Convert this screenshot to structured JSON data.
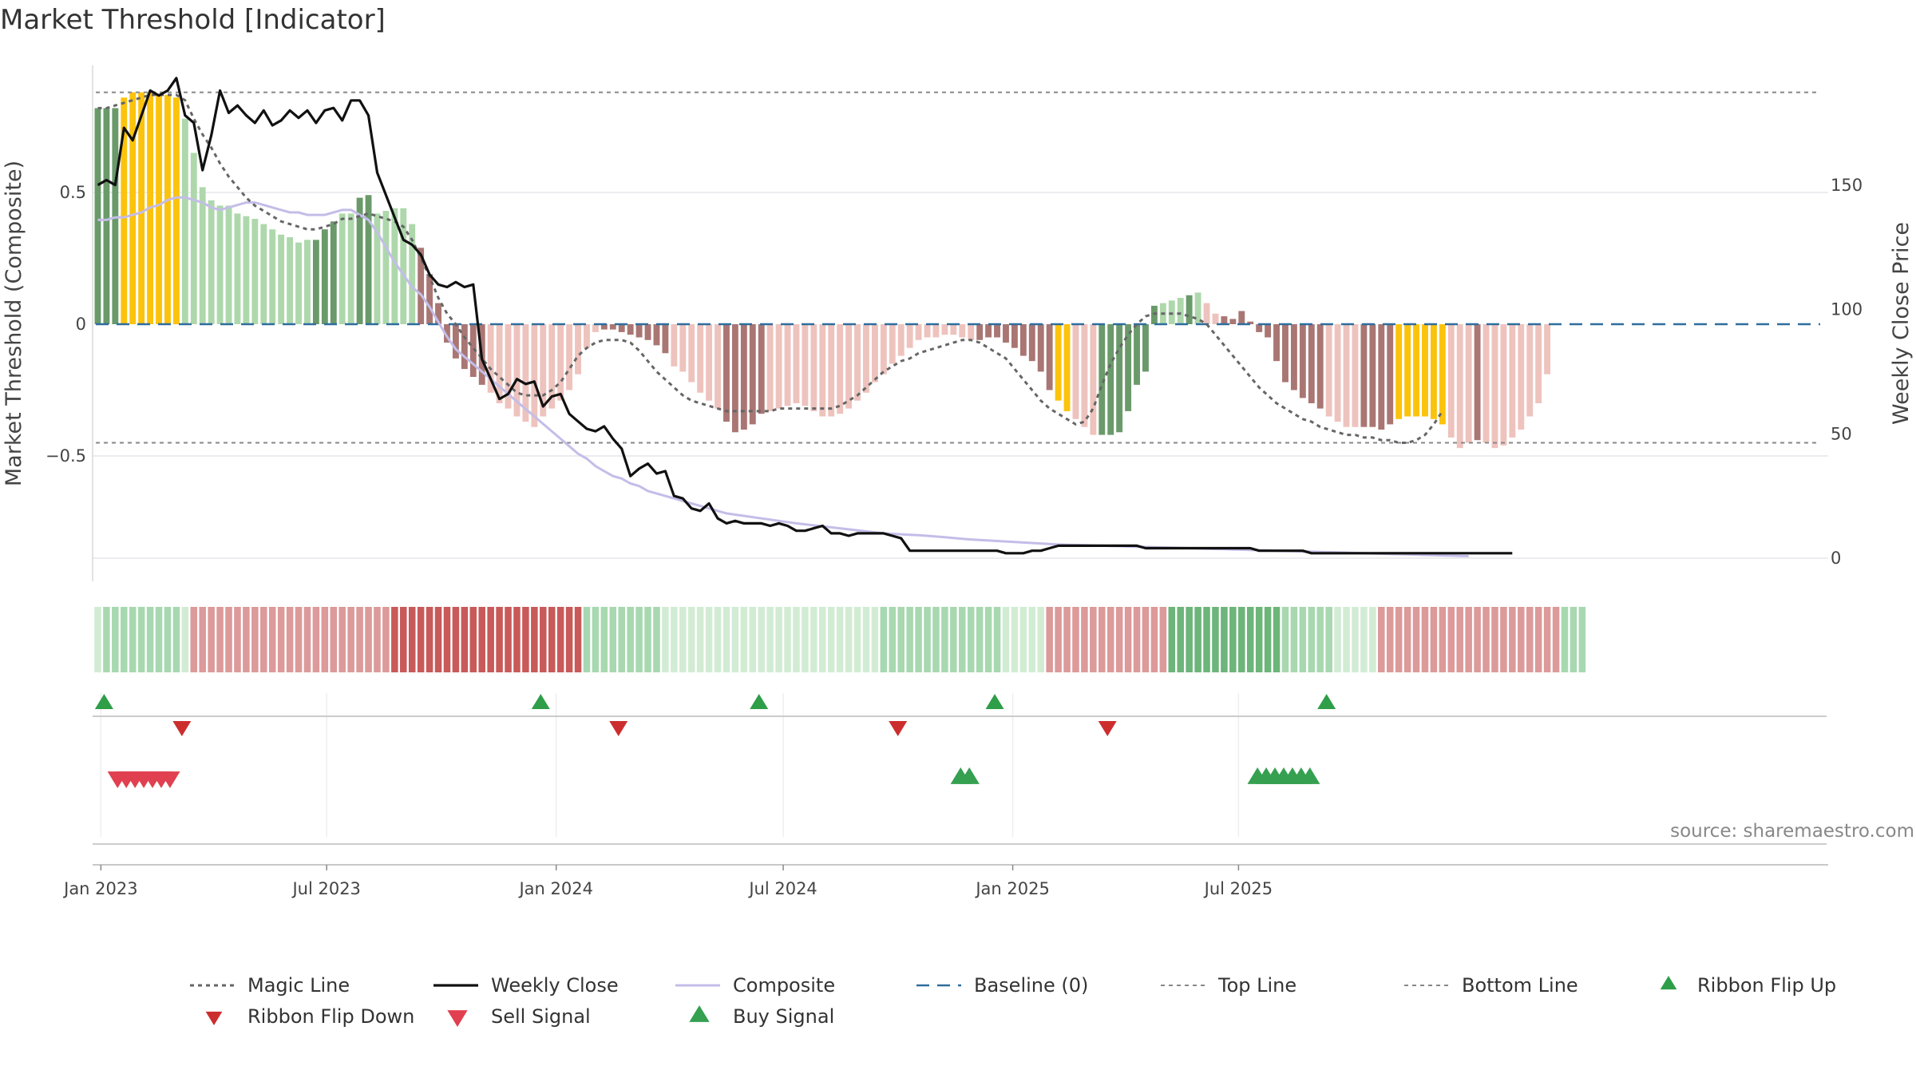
{
  "title": "Market Threshold [Indicator]",
  "source": "source: sharemaestro.com",
  "colors": {
    "strong_bull": "#6a9a6a",
    "bull": "#aed8ac",
    "extreme": "#fcc30d",
    "bear": "#a97673",
    "weak_bear": "#eec3bd",
    "magic_line": "#666666",
    "weekly_close": "#111111",
    "composite": "#c4bde8",
    "baseline": "#2e6d9e",
    "top_bottom_line": "#888888",
    "flip_up": "#2e9e48",
    "flip_down": "#cc2e2e",
    "sell": "#e04050",
    "buy": "#34a050",
    "ribbon_green_strong": "#6db57a",
    "ribbon_green": "#a8d8b0",
    "ribbon_green_light": "#d2ecd4",
    "ribbon_red_strong": "#c85a5a",
    "ribbon_red": "#dc9a9a",
    "ribbon_red_light": "#f2d2d2"
  },
  "chart_data": {
    "type": "bar",
    "title": "Market Threshold [Indicator]",
    "x_ticks": [
      "Jan 2023",
      "Jul 2023",
      "Jan 2024",
      "Jul 2024",
      "Jan 2025",
      "Jul 2025"
    ],
    "left_axis": {
      "label": "Market Threshold (Composite)",
      "ticks": [
        "0.5",
        "0",
        "−0.5"
      ],
      "ylim": [
        -0.9,
        0.98
      ]
    },
    "right_axis": {
      "label": "Weekly Close Price",
      "ticks": [
        "150",
        "100",
        "50",
        "0"
      ],
      "ylim": [
        0,
        195
      ]
    },
    "x_start": "2022-12-26",
    "top_line": 0.88,
    "bottom_line": -0.45,
    "bar_style": [
      "B",
      "A",
      "A",
      "Y",
      "Y",
      "Y",
      "Y",
      "Y",
      "Y",
      "Y",
      "S",
      "S",
      "S",
      "S",
      "S",
      "S",
      "S",
      "S",
      "S",
      "S",
      "S",
      "S",
      "S",
      "S",
      "S",
      "A",
      "A",
      "A",
      "S",
      "S",
      "A",
      "A",
      "S",
      "S",
      "S",
      "S",
      "S",
      "r",
      "r",
      "r",
      "r",
      "r",
      "r",
      "r",
      "r",
      "w",
      "w",
      "w",
      "w",
      "w",
      "w",
      "w",
      "w",
      "w",
      "w",
      "w",
      "w",
      "w",
      "r",
      "r",
      "r",
      "r",
      "r",
      "r",
      "r",
      "r",
      "w",
      "w",
      "w",
      "w",
      "w",
      "w",
      "r",
      "r",
      "r",
      "r",
      "r",
      "w",
      "w",
      "w",
      "w",
      "w",
      "w",
      "w",
      "w",
      "w",
      "w",
      "w",
      "w",
      "w",
      "w",
      "w",
      "w",
      "w",
      "w",
      "w",
      "w",
      "w",
      "w",
      "w",
      "w",
      "r",
      "r",
      "r",
      "r",
      "r",
      "r",
      "r",
      "r",
      "r",
      "Y",
      "Y",
      "w",
      "w",
      "w",
      "A",
      "A",
      "A",
      "A",
      "A",
      "A",
      "A",
      "S",
      "S",
      "S",
      "A",
      "S",
      "w",
      "w",
      "r",
      "r",
      "r",
      "r",
      "r",
      "r",
      "r",
      "r",
      "r",
      "r",
      "r",
      "r",
      "w",
      "w",
      "w",
      "w",
      "r",
      "r",
      "r",
      "r",
      "Y",
      "Y",
      "Y",
      "Y",
      "Y",
      "Y",
      "w",
      "w",
      "w",
      "r",
      "w"
    ],
    "composite_bars": [
      0.82,
      0.82,
      0.82,
      0.86,
      0.88,
      0.88,
      0.88,
      0.87,
      0.87,
      0.86,
      0.78,
      0.65,
      0.52,
      0.47,
      0.45,
      0.45,
      0.42,
      0.41,
      0.4,
      0.38,
      0.36,
      0.34,
      0.33,
      0.31,
      0.32,
      0.32,
      0.36,
      0.39,
      0.42,
      0.42,
      0.48,
      0.49,
      0.42,
      0.43,
      0.44,
      0.44,
      0.38,
      0.29,
      0.19,
      0.08,
      -0.07,
      -0.13,
      -0.17,
      -0.2,
      -0.23,
      -0.26,
      -0.3,
      -0.32,
      -0.35,
      -0.37,
      -0.39,
      -0.35,
      -0.32,
      -0.29,
      -0.25,
      -0.19,
      -0.09,
      -0.03,
      -0.02,
      -0.02,
      -0.03,
      -0.04,
      -0.05,
      -0.06,
      -0.08,
      -0.11,
      -0.16,
      -0.18,
      -0.22,
      -0.26,
      -0.29,
      -0.32,
      -0.37,
      -0.41,
      -0.4,
      -0.38,
      -0.34,
      -0.33,
      -0.32,
      -0.31,
      -0.3,
      -0.31,
      -0.33,
      -0.35,
      -0.35,
      -0.34,
      -0.32,
      -0.29,
      -0.26,
      -0.22,
      -0.19,
      -0.15,
      -0.12,
      -0.09,
      -0.06,
      -0.05,
      -0.05,
      -0.04,
      -0.04,
      -0.05,
      -0.06,
      -0.06,
      -0.05,
      -0.05,
      -0.07,
      -0.09,
      -0.12,
      -0.14,
      -0.18,
      -0.25,
      -0.29,
      -0.33,
      -0.36,
      -0.39,
      -0.42,
      -0.42,
      -0.42,
      -0.41,
      -0.33,
      -0.23,
      -0.18,
      0.07,
      0.08,
      0.09,
      0.1,
      0.11,
      0.12,
      0.08,
      0.04,
      0.03,
      0.02,
      0.05,
      0.01,
      -0.03,
      -0.05,
      -0.14,
      -0.22,
      -0.25,
      -0.28,
      -0.3,
      -0.32,
      -0.35,
      -0.37,
      -0.39,
      -0.39,
      -0.39,
      -0.39,
      -0.4,
      -0.38,
      -0.36,
      -0.35,
      -0.35,
      -0.35,
      -0.36,
      -0.38,
      -0.43,
      -0.47,
      -0.45,
      -0.44,
      -0.45,
      -0.47,
      -0.46,
      -0.43,
      -0.4,
      -0.35,
      -0.3,
      -0.19
    ],
    "magic_line": [
      0.82,
      0.82,
      0.83,
      0.84,
      0.85,
      0.86,
      0.87,
      0.87,
      0.87,
      0.87,
      0.85,
      0.78,
      0.72,
      0.67,
      0.61,
      0.56,
      0.52,
      0.48,
      0.45,
      0.43,
      0.41,
      0.39,
      0.38,
      0.37,
      0.36,
      0.36,
      0.37,
      0.38,
      0.4,
      0.4,
      0.41,
      0.42,
      0.41,
      0.4,
      0.39,
      0.37,
      0.32,
      0.25,
      0.18,
      0.1,
      0.04,
      0.0,
      -0.05,
      -0.09,
      -0.13,
      -0.17,
      -0.2,
      -0.23,
      -0.26,
      -0.27,
      -0.27,
      -0.27,
      -0.25,
      -0.22,
      -0.17,
      -0.12,
      -0.09,
      -0.07,
      -0.06,
      -0.06,
      -0.06,
      -0.07,
      -0.1,
      -0.14,
      -0.18,
      -0.21,
      -0.24,
      -0.27,
      -0.29,
      -0.3,
      -0.31,
      -0.32,
      -0.33,
      -0.33,
      -0.33,
      -0.33,
      -0.33,
      -0.33,
      -0.32,
      -0.32,
      -0.32,
      -0.32,
      -0.32,
      -0.32,
      -0.32,
      -0.31,
      -0.29,
      -0.27,
      -0.24,
      -0.21,
      -0.18,
      -0.16,
      -0.14,
      -0.13,
      -0.11,
      -0.1,
      -0.09,
      -0.08,
      -0.07,
      -0.06,
      -0.06,
      -0.07,
      -0.09,
      -0.11,
      -0.13,
      -0.17,
      -0.21,
      -0.25,
      -0.29,
      -0.32,
      -0.34,
      -0.36,
      -0.38,
      -0.37,
      -0.32,
      -0.23,
      -0.15,
      -0.09,
      -0.04,
      0.0,
      0.03,
      0.04,
      0.04,
      0.04,
      0.04,
      0.03,
      0.02,
      0.0,
      -0.04,
      -0.08,
      -0.12,
      -0.16,
      -0.2,
      -0.24,
      -0.27,
      -0.3,
      -0.32,
      -0.34,
      -0.36,
      -0.37,
      -0.39,
      -0.4,
      -0.41,
      -0.42,
      -0.42,
      -0.43,
      -0.43,
      -0.44,
      -0.44,
      -0.45,
      -0.45,
      -0.44,
      -0.42,
      -0.38,
      -0.33
    ],
    "composite_line": [
      136,
      136,
      137,
      137,
      138,
      139,
      141,
      142,
      144,
      145,
      145,
      144,
      143,
      141,
      140,
      141,
      142,
      143,
      143,
      142,
      141,
      140,
      139,
      139,
      138,
      138,
      138,
      139,
      140,
      140,
      138,
      136,
      131,
      125,
      119,
      114,
      109,
      106,
      101,
      95,
      89,
      84,
      81,
      78,
      75,
      72,
      69,
      66,
      63,
      60,
      57,
      54,
      51,
      48,
      45,
      42,
      40,
      37,
      35,
      33,
      32,
      30,
      29,
      27,
      26,
      25,
      24,
      23,
      22,
      21,
      20,
      19,
      18,
      17.5,
      17,
      16.5,
      16,
      15.5,
      15,
      14.5,
      14,
      13.6,
      13.2,
      12.8,
      12.4,
      12,
      11.6,
      11.2,
      10.8,
      10.4,
      10,
      9.8,
      9.6,
      9.4,
      9.2,
      9,
      8.7,
      8.4,
      8.1,
      7.8,
      7.5,
      7.3,
      7.1,
      6.9,
      6.7,
      6.5,
      6.3,
      6.1,
      5.9,
      5.7,
      5.5,
      5.4,
      5.3,
      5.2,
      5.1,
      5,
      4.9,
      4.8,
      4.7,
      4.6,
      4.5,
      4.4,
      4.3,
      4.2,
      4.1,
      4,
      3.9,
      3.8,
      3.7,
      3.6,
      3.5,
      3.4,
      3.3,
      3.2,
      3.1,
      3,
      2.9,
      2.8,
      2.7,
      2.6,
      2.5,
      2.4,
      2.3,
      2.2,
      2.1,
      2,
      1.9,
      1.8,
      1.7,
      1.6,
      1.5,
      1.4,
      1.3,
      1.2,
      1.1,
      1,
      0.9,
      0.8
    ],
    "weekly_close": [
      150,
      152,
      150,
      173,
      168,
      178,
      188,
      186,
      188,
      193,
      178,
      175,
      156,
      170,
      188,
      179,
      182,
      178,
      175,
      180,
      174,
      176,
      180,
      177,
      180,
      175,
      180,
      181,
      176,
      184,
      184,
      178,
      155,
      146,
      137,
      128,
      126,
      122,
      114,
      110,
      109,
      111,
      109,
      110,
      80,
      72,
      64,
      66,
      72,
      70,
      71,
      61,
      65,
      66,
      58,
      55,
      52,
      51,
      53,
      48,
      44,
      33,
      36,
      38,
      34,
      35,
      25,
      24,
      20,
      19,
      22,
      16,
      14,
      15,
      14,
      14,
      14,
      13,
      14,
      13,
      11,
      11,
      12,
      13,
      10,
      10,
      9,
      10,
      10,
      10,
      10,
      9,
      8,
      3,
      3,
      3,
      3,
      3,
      3,
      3,
      3,
      3,
      3,
      3,
      2,
      2,
      2,
      3,
      3,
      4,
      5,
      5,
      5,
      5,
      5,
      5,
      5,
      5,
      5,
      5,
      4,
      4,
      4,
      4,
      4,
      4,
      4,
      4,
      4,
      4,
      4,
      4,
      4,
      3,
      3,
      3,
      3,
      3,
      3,
      2,
      2,
      2,
      2,
      2,
      2,
      2,
      2,
      2,
      2,
      2,
      2,
      2,
      2,
      2,
      2,
      2,
      2,
      2,
      2,
      2,
      2,
      2,
      2
    ],
    "ribbon": [
      "L",
      "G",
      "G",
      "G",
      "G",
      "G",
      "G",
      "G",
      "G",
      "G",
      "l",
      "r",
      "r",
      "r",
      "r",
      "r",
      "r",
      "r",
      "r",
      "r",
      "r",
      "r",
      "r",
      "r",
      "r",
      "r",
      "r",
      "r",
      "r",
      "r",
      "r",
      "r",
      "r",
      "r",
      "R",
      "R",
      "R",
      "R",
      "R",
      "R",
      "R",
      "R",
      "R",
      "R",
      "R",
      "R",
      "R",
      "R",
      "R",
      "R",
      "R",
      "R",
      "R",
      "R",
      "R",
      "R",
      "G",
      "G",
      "G",
      "G",
      "G",
      "G",
      "G",
      "G",
      "G",
      "l",
      "l",
      "l",
      "l",
      "l",
      "l",
      "l",
      "l",
      "l",
      "l",
      "l",
      "l",
      "l",
      "l",
      "l",
      "l",
      "l",
      "l",
      "l",
      "l",
      "l",
      "l",
      "l",
      "l",
      "l",
      "G",
      "G",
      "G",
      "G",
      "G",
      "G",
      "G",
      "G",
      "G",
      "G",
      "G",
      "G",
      "G",
      "G",
      "l",
      "l",
      "l",
      "l",
      "l",
      "r",
      "r",
      "r",
      "r",
      "r",
      "r",
      "r",
      "r",
      "r",
      "r",
      "r",
      "r",
      "r",
      "r",
      "S",
      "S",
      "S",
      "S",
      "S",
      "S",
      "S",
      "S",
      "S",
      "S",
      "S",
      "S",
      "S",
      "G",
      "G",
      "G",
      "G",
      "G",
      "G",
      "l",
      "l",
      "l",
      "l",
      "l",
      "r",
      "r",
      "r",
      "r",
      "r",
      "r",
      "r",
      "r",
      "r",
      "r",
      "r",
      "r",
      "r",
      "r",
      "r",
      "r",
      "r",
      "r",
      "r",
      "r",
      "r",
      "G",
      "G",
      "G"
    ],
    "ribbon_flip_up_weeks": [
      1,
      51,
      76,
      103,
      141
    ],
    "ribbon_flip_down_weeks": [
      10,
      60,
      92,
      116
    ],
    "sell_signal_weeks": [
      3,
      4,
      5,
      6,
      7,
      8,
      9
    ],
    "buy_signal_weeks": [
      99,
      100,
      133,
      134,
      135,
      136,
      137,
      138,
      139
    ],
    "legend": [
      {
        "key": "magic",
        "label": "Magic Line"
      },
      {
        "key": "close",
        "label": "Weekly Close"
      },
      {
        "key": "composite",
        "label": "Composite"
      },
      {
        "key": "baseline",
        "label": "Baseline (0)"
      },
      {
        "key": "top",
        "label": "Top Line"
      },
      {
        "key": "bottom",
        "label": "Bottom Line"
      },
      {
        "key": "flipup",
        "label": "Ribbon Flip Up"
      },
      {
        "key": "flipdown",
        "label": "Ribbon Flip Down"
      },
      {
        "key": "sell",
        "label": "Sell Signal"
      },
      {
        "key": "buy",
        "label": "Buy Signal"
      }
    ]
  }
}
